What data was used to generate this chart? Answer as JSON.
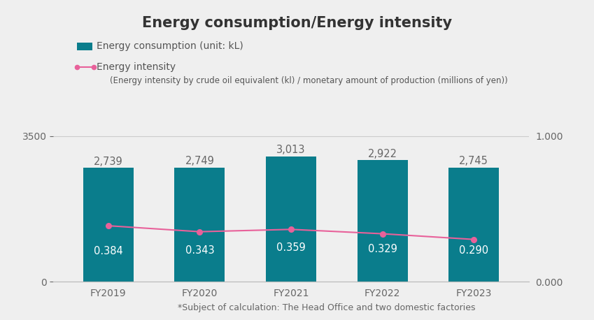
{
  "title": "Energy consumption/Energy intensity",
  "categories": [
    "FY2019",
    "FY2020",
    "FY2021",
    "FY2022",
    "FY2023"
  ],
  "bar_values": [
    2739,
    2749,
    3013,
    2922,
    2745
  ],
  "line_values": [
    0.384,
    0.343,
    0.359,
    0.329,
    0.29
  ],
  "bar_color": "#0a7d8c",
  "line_color": "#e8619a",
  "background_color": "#efefef",
  "bar_label_color_inside": "#ffffff",
  "bar_label_color_outside": "#666666",
  "ylim_left": [
    0,
    3850
  ],
  "ylim_right": [
    0,
    1.1
  ],
  "yticks_left": [
    0,
    3500
  ],
  "yticks_right": [
    0.0,
    1.0
  ],
  "legend_bar_label": "Energy consumption (unit: kL)",
  "legend_line_label1": "Energy intensity",
  "legend_line_label2": "(Energy intensity by crude oil equivalent (kl) / monetary amount of production (millions of yen))",
  "footnote": "*Subject of calculation: The Head Office and two domestic factories",
  "title_fontsize": 15,
  "bar_label_fontsize": 10.5,
  "tick_fontsize": 10,
  "legend_fontsize": 10,
  "footnote_fontsize": 9
}
